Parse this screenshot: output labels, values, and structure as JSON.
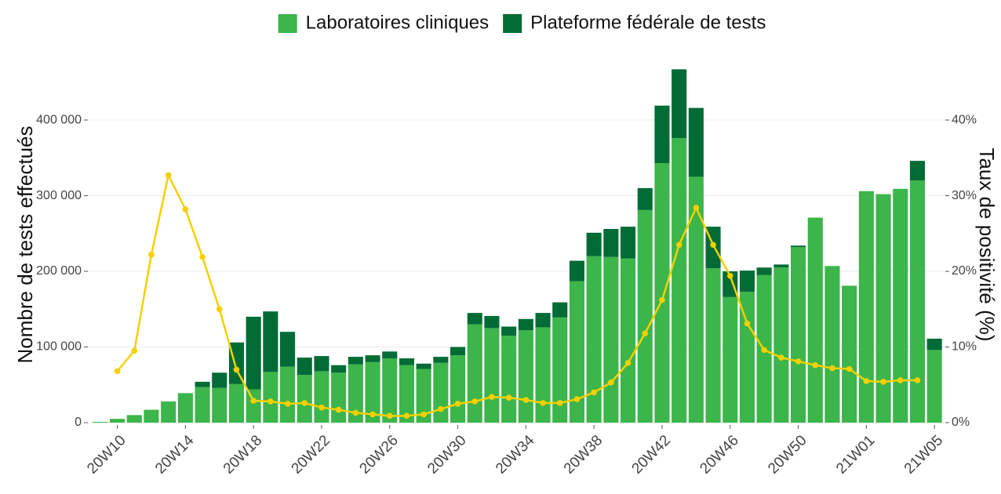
{
  "chart_data": {
    "type": "bar",
    "stacked": true,
    "categories": [
      null,
      "20W10",
      null,
      null,
      null,
      "20W14",
      null,
      null,
      null,
      "20W18",
      null,
      null,
      null,
      "20W22",
      null,
      null,
      null,
      "20W26",
      null,
      null,
      null,
      "20W30",
      null,
      null,
      null,
      "20W34",
      null,
      null,
      null,
      "20W38",
      null,
      null,
      null,
      "20W42",
      null,
      null,
      null,
      "20W46",
      null,
      null,
      null,
      "20W50",
      null,
      null,
      null,
      "21W01",
      null,
      null,
      null,
      "21W05"
    ],
    "series": [
      {
        "name": "Laboratoires cliniques",
        "color": "#3cb54a",
        "values": [
          1000,
          5000,
          10000,
          17000,
          28000,
          39000,
          47000,
          46000,
          51000,
          44000,
          67000,
          74000,
          63000,
          68000,
          66000,
          77000,
          80000,
          85000,
          76000,
          71000,
          79000,
          89000,
          130000,
          125000,
          115000,
          122000,
          126000,
          139000,
          187000,
          220000,
          219000,
          217000,
          281000,
          343000,
          376000,
          325000,
          204000,
          166000,
          173000,
          195000,
          205000,
          232000,
          271000,
          207000,
          181000,
          306000,
          302000,
          309000,
          320000,
          96000
        ]
      },
      {
        "name": "Plateforme fédérale de tests",
        "color": "#006b35",
        "values": [
          0,
          0,
          0,
          0,
          0,
          0,
          7000,
          20000,
          55000,
          96000,
          80000,
          46000,
          23000,
          20000,
          10000,
          10000,
          9000,
          9000,
          9000,
          7000,
          8000,
          11000,
          15000,
          16000,
          12000,
          15000,
          19000,
          20000,
          27000,
          31000,
          37000,
          42000,
          29000,
          76000,
          91000,
          91000,
          55000,
          34000,
          28000,
          10000,
          4000,
          2000,
          0,
          0,
          0,
          0,
          0,
          0,
          26000,
          15000
        ]
      },
      {
        "type": "line",
        "axis": "y2",
        "color": "#f5d000",
        "values": [
          null,
          6.8,
          9.5,
          22.2,
          32.7,
          28.2,
          21.9,
          15.0,
          7.0,
          2.9,
          2.8,
          2.5,
          2.6,
          2.0,
          1.7,
          1.3,
          1.1,
          0.9,
          0.9,
          1.1,
          1.8,
          2.5,
          2.8,
          3.4,
          3.3,
          3.0,
          2.6,
          2.6,
          3.1,
          4.0,
          5.3,
          7.9,
          11.8,
          16.2,
          23.5,
          28.4,
          23.5,
          19.4,
          13.1,
          9.6,
          8.6,
          8.1,
          7.6,
          7.2,
          7.1,
          5.5,
          5.4,
          5.6,
          5.6,
          null
        ]
      }
    ],
    "ylabel": "Nombre de tests effectués",
    "y2label": "Taux de positivité (%)",
    "ylim": [
      0,
      470000
    ],
    "yticks": [
      0,
      {
        "value": 100000,
        "label": "100 000"
      },
      {
        "value": 200000,
        "label": "200 000"
      },
      {
        "value": 300000,
        "label": "300 000"
      },
      {
        "value": 400000,
        "label": "400 000"
      }
    ],
    "y2lim": [
      0,
      47
    ],
    "y2ticks": [
      {
        "value": 0,
        "label": "0%"
      },
      {
        "value": 10,
        "label": "10%"
      },
      {
        "value": 20,
        "label": "20%"
      },
      {
        "value": 30,
        "label": "30%"
      },
      {
        "value": 40,
        "label": "40%"
      }
    ],
    "grid": true,
    "legend": "top"
  }
}
